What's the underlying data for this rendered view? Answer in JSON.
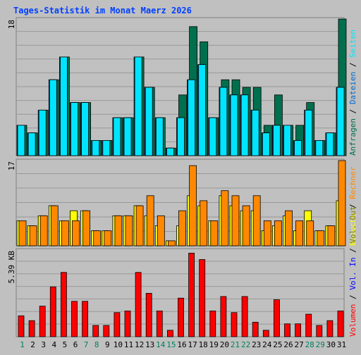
{
  "chart_data": {
    "type": "bar",
    "title": "Tages-Statistik im Monat Maerz 2026",
    "days": [
      "1",
      "2",
      "3",
      "4",
      "5",
      "6",
      "7",
      "8",
      "9",
      "10",
      "11",
      "12",
      "13",
      "14",
      "15",
      "16",
      "17",
      "18",
      "19",
      "20",
      "21",
      "22",
      "23",
      "24",
      "25",
      "26",
      "27",
      "28",
      "29",
      "30",
      "31"
    ],
    "weekend_days": [
      "1",
      "7",
      "8",
      "14",
      "15",
      "21",
      "22",
      "28",
      "29"
    ],
    "panels": [
      {
        "axis_label": "18",
        "ylim": [
          0,
          18
        ],
        "series": [
          {
            "name": "Anfragen",
            "color": "#006f4e",
            "values": [
              4,
              3,
              6,
              10,
              13,
              7,
              7,
              2,
              2,
              5,
              5,
              13,
              9,
              5,
              1,
              8,
              17,
              15,
              5,
              10,
              10,
              9,
              9,
              4,
              8,
              4,
              4,
              7,
              2,
              3,
              18
            ]
          },
          {
            "name": "Dateien",
            "color": "#006ad4",
            "values": [
              4,
              3,
              6,
              10,
              13,
              7,
              7,
              2,
              2,
              5,
              5,
              13,
              9,
              5,
              1,
              5,
              10,
              12,
              5,
              9,
              8,
              8,
              6,
              3,
              4,
              4,
              2,
              6,
              2,
              3,
              9
            ]
          },
          {
            "name": "Seiten",
            "color": "#00e4ff",
            "values": [
              4,
              3,
              6,
              10,
              13,
              7,
              7,
              2,
              2,
              5,
              5,
              13,
              9,
              5,
              1,
              5,
              10,
              12,
              5,
              9,
              8,
              8,
              6,
              3,
              4,
              4,
              2,
              6,
              2,
              3,
              9
            ]
          }
        ]
      },
      {
        "axis_label": "17",
        "ylim": [
          0,
          17
        ],
        "series": [
          {
            "name": "Besuche",
            "color": "#ffff00",
            "values": [
              5,
              4,
              6,
              8,
              5,
              7,
              7,
              3,
              3,
              6,
              6,
              8,
              6,
              4,
              1,
              4,
              10,
              8,
              5,
              10,
              8,
              7,
              7,
              3,
              4,
              6,
              3,
              7,
              3,
              4,
              9
            ]
          },
          {
            "name": "Rechner",
            "color": "#ff8800",
            "values": [
              5,
              4,
              6,
              8,
              5,
              5,
              7,
              3,
              3,
              6,
              6,
              8,
              10,
              6,
              1,
              7,
              16,
              9,
              5,
              11,
              10,
              8,
              10,
              5,
              5,
              7,
              5,
              5,
              3,
              4,
              17
            ]
          }
        ]
      },
      {
        "axis_label": "5.39 KB",
        "ylim": [
          0,
          5.39
        ],
        "series": [
          {
            "name": "Volumen",
            "color": "#ff0000",
            "values": [
              1.3,
              1.0,
              1.9,
              3.1,
              4.0,
              2.2,
              2.2,
              0.7,
              0.7,
              1.5,
              1.6,
              4.0,
              2.7,
              1.6,
              0.4,
              2.4,
              5.2,
              4.8,
              1.6,
              2.5,
              1.5,
              2.5,
              0.9,
              0.4,
              2.3,
              0.8,
              0.8,
              1.4,
              0.7,
              1.0,
              1.6
            ]
          },
          {
            "name": "Vol. In",
            "color": "#0000ff",
            "values": []
          },
          {
            "name": "Vol. Out",
            "color": "#808000",
            "values": []
          }
        ]
      }
    ]
  },
  "colors": {
    "title": "#0040ff",
    "weekend_label": "#00805c",
    "weekday_label": "#000000",
    "panel_bg": "#c0c0c0",
    "border": "#808080",
    "grid": "#999999"
  }
}
